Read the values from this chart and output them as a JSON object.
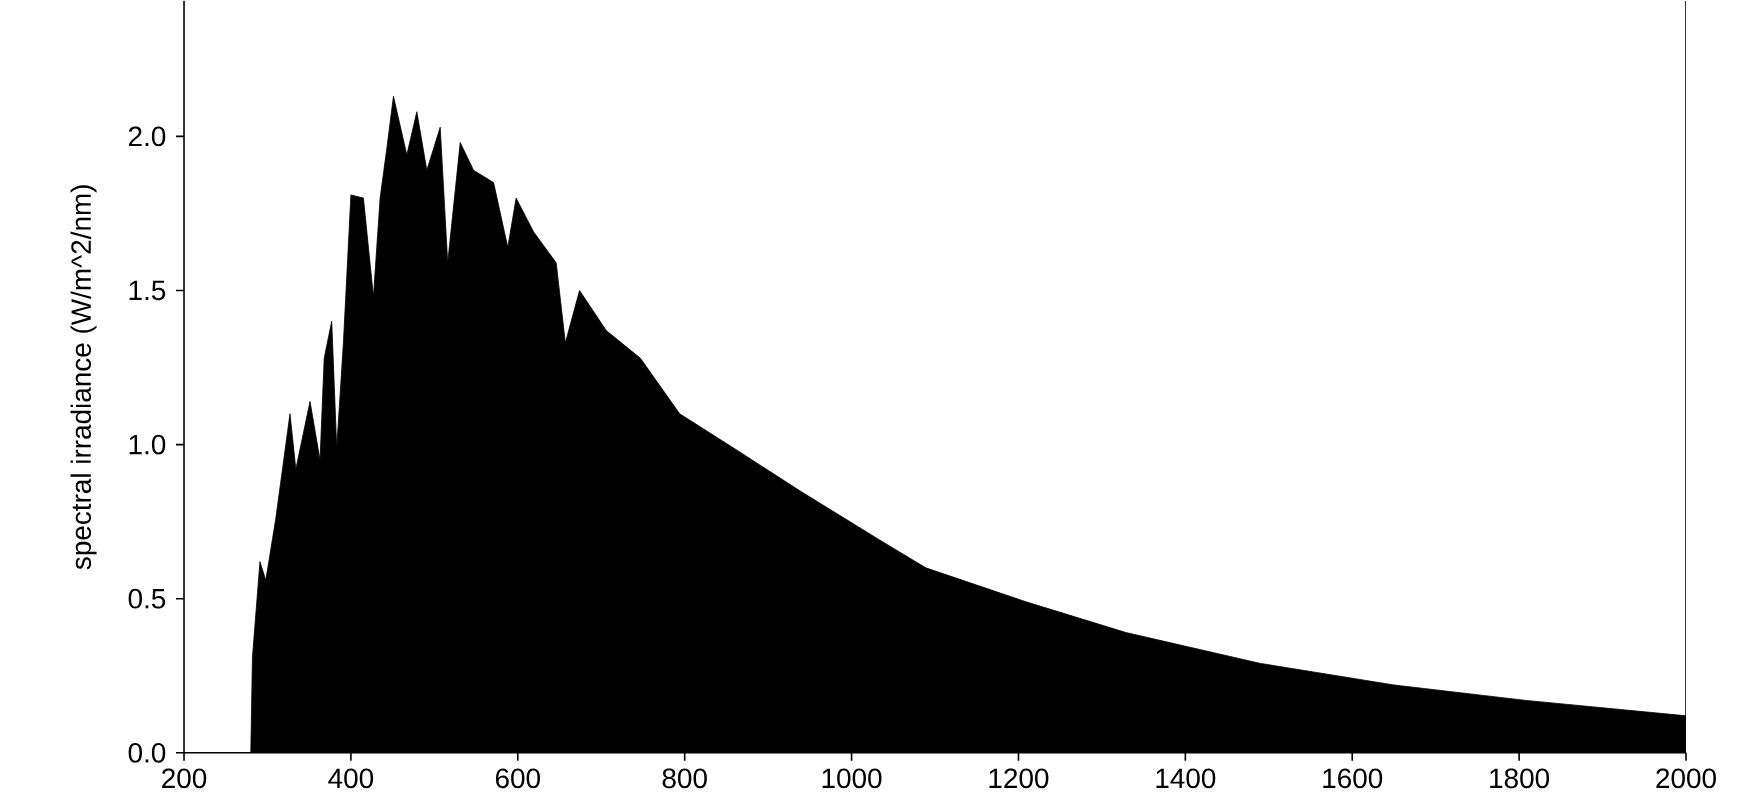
{
  "chart_data": {
    "type": "area",
    "ylabel": "spectral irradiance (W/m^2/nm)",
    "xlim": [
      200,
      2000
    ],
    "xticks": [
      200,
      400,
      600,
      800,
      1000,
      1200,
      1400,
      1600,
      1800,
      2000
    ],
    "ylim": [
      0,
      2.44
    ],
    "yticks": [
      {
        "value": 0,
        "label": "0.0"
      },
      0.5,
      {
        "value": 1,
        "label": "1.0"
      },
      1.5,
      {
        "value": 2,
        "label": "2.0"
      }
    ],
    "series": [
      {
        "color": "#000000",
        "x": [
          280,
          282,
          291,
          298,
          310,
          327,
          334,
          351,
          363,
          368,
          377,
          383,
          391,
          400,
          415,
          427,
          435,
          443,
          451,
          467,
          479,
          491,
          507,
          516,
          531,
          547,
          571,
          588,
          598,
          619,
          646,
          657,
          674,
          706,
          747,
          794,
          858,
          938,
          1034,
          1089,
          1209,
          1329,
          1490,
          1650,
          1808,
          2000
        ],
        "values": [
          0.0,
          0.31,
          0.62,
          0.56,
          0.76,
          1.1,
          0.92,
          1.14,
          0.95,
          1.28,
          1.4,
          0.99,
          1.33,
          1.81,
          1.8,
          1.48,
          1.8,
          1.96,
          2.13,
          1.94,
          2.08,
          1.89,
          2.03,
          1.59,
          1.98,
          1.89,
          1.85,
          1.64,
          1.8,
          1.69,
          1.59,
          1.33,
          1.5,
          1.37,
          1.28,
          1.1,
          0.99,
          0.85,
          0.69,
          0.6,
          0.49,
          0.39,
          0.29,
          0.22,
          0.17,
          0.12
        ]
      }
    ]
  }
}
